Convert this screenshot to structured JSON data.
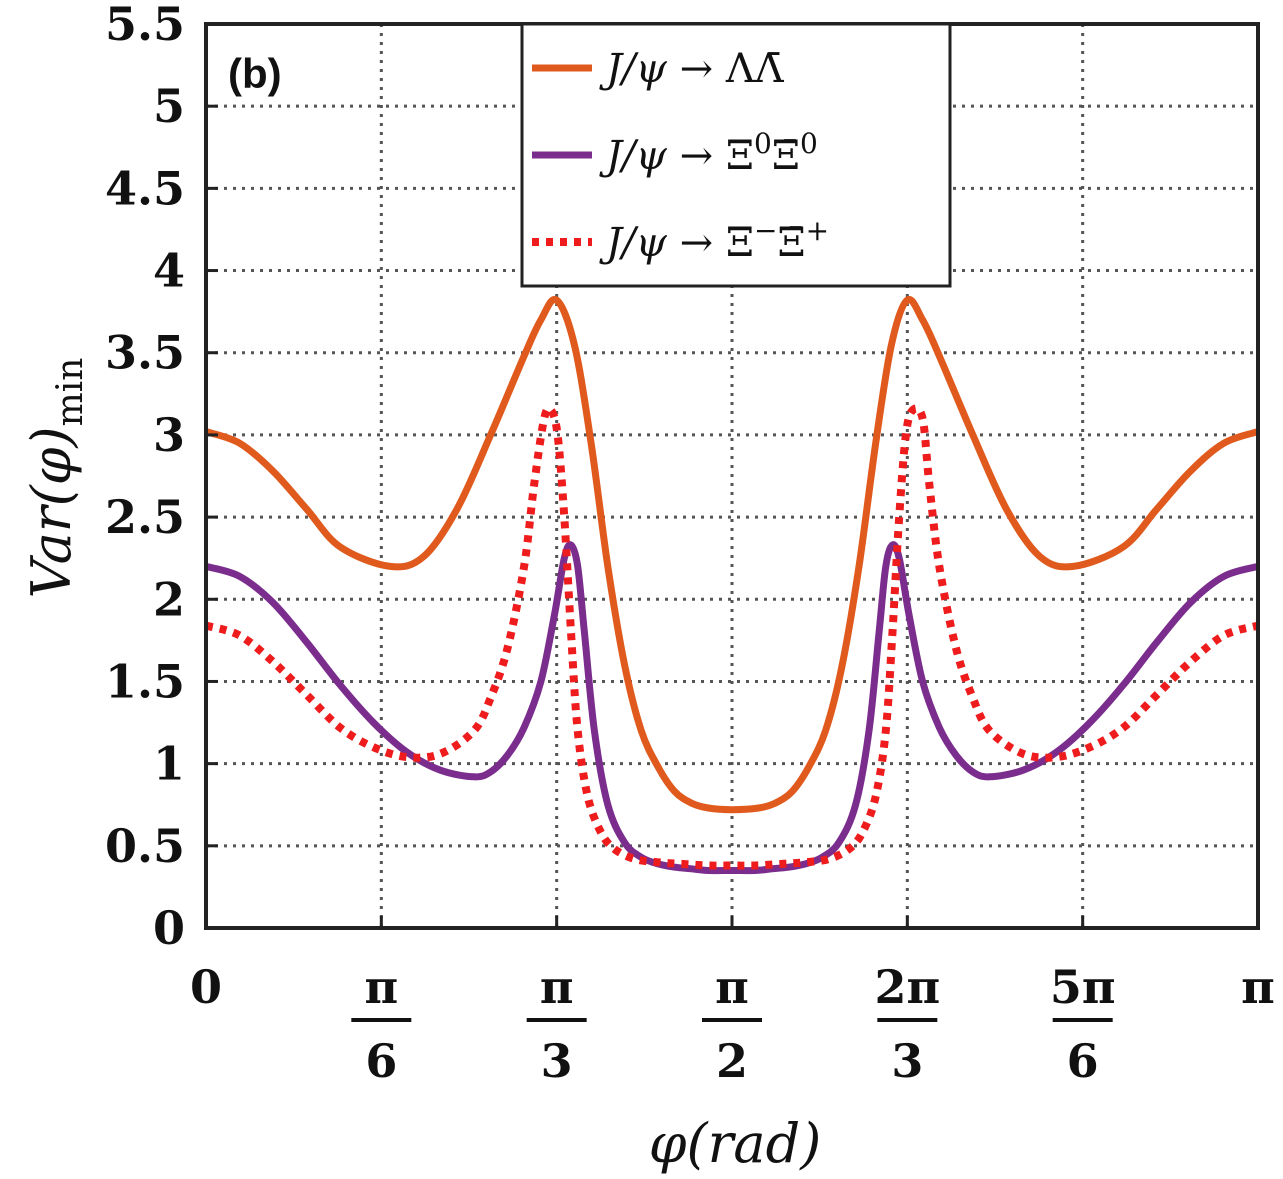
{
  "chart_data": {
    "type": "line",
    "panel_label": "(b)",
    "xlabel": "φ(rad)",
    "ylabel": "Var(φ)",
    "ylabel_sub": "min",
    "xlim": [
      0,
      3.14159265
    ],
    "ylim": [
      0,
      5.5
    ],
    "grid": true,
    "legend_position": "top-center",
    "y_ticks": [
      {
        "value": 0,
        "label": "0"
      },
      {
        "value": 0.5,
        "label": "0.5"
      },
      {
        "value": 1,
        "label": "1"
      },
      {
        "value": 1.5,
        "label": "1.5"
      },
      {
        "value": 2,
        "label": "2"
      },
      {
        "value": 2.5,
        "label": "2.5"
      },
      {
        "value": 3,
        "label": "3"
      },
      {
        "value": 3.5,
        "label": "3.5"
      },
      {
        "value": 4,
        "label": "4"
      },
      {
        "value": 4.5,
        "label": "4.5"
      },
      {
        "value": 5,
        "label": "5"
      },
      {
        "value": 5.5,
        "label": "5.5"
      }
    ],
    "x_ticks": [
      {
        "value": 0,
        "num": "0",
        "den": ""
      },
      {
        "value": 0.5235988,
        "num": "π",
        "den": "6"
      },
      {
        "value": 1.0471976,
        "num": "π",
        "den": "3"
      },
      {
        "value": 1.5707963,
        "num": "π",
        "den": "2"
      },
      {
        "value": 2.0943951,
        "num": "2π",
        "den": "3"
      },
      {
        "value": 2.6179939,
        "num": "5π",
        "den": "6"
      },
      {
        "value": 3.1415927,
        "num": "π",
        "den": ""
      }
    ],
    "series": [
      {
        "name": "J/ψ → ΛΛ̄",
        "legend_prefix": "J/ψ → ",
        "legend_body": "ΛΛ̄",
        "legend_sup1": "",
        "legend_body2": "",
        "legend_sup2": "",
        "color": "#e05a1e",
        "style": "solid",
        "x": [
          0,
          0.1,
          0.2,
          0.3,
          0.4,
          0.55,
          0.65,
          0.75,
          0.85,
          0.95,
          1.0,
          1.047,
          1.1,
          1.15,
          1.2,
          1.25,
          1.3,
          1.35,
          1.4,
          1.45,
          1.5,
          1.5708,
          1.65,
          1.7,
          1.75,
          1.8,
          1.85,
          1.9,
          1.95,
          2.0,
          2.047,
          2.094,
          2.14,
          2.19,
          2.29,
          2.39,
          2.49,
          2.59,
          2.74,
          2.84,
          2.94,
          3.04,
          3.1416
        ],
        "y": [
          3.02,
          2.95,
          2.78,
          2.55,
          2.32,
          2.2,
          2.26,
          2.55,
          3.0,
          3.48,
          3.7,
          3.82,
          3.55,
          2.95,
          2.2,
          1.6,
          1.2,
          0.98,
          0.83,
          0.76,
          0.73,
          0.72,
          0.73,
          0.76,
          0.83,
          0.98,
          1.2,
          1.6,
          2.2,
          2.95,
          3.55,
          3.82,
          3.7,
          3.48,
          3.0,
          2.55,
          2.26,
          2.2,
          2.32,
          2.55,
          2.78,
          2.95,
          3.02
        ]
      },
      {
        "name": "J/ψ → Ξ⁰Ξ̄⁰",
        "legend_prefix": "J/ψ → ",
        "legend_body": "Ξ",
        "legend_sup1": "0",
        "legend_body2": "Ξ̄",
        "legend_sup2": "0",
        "color": "#7b2d8e",
        "style": "solid",
        "x": [
          0,
          0.1,
          0.2,
          0.3,
          0.4,
          0.5,
          0.6,
          0.7,
          0.8,
          0.85,
          0.9,
          0.95,
          1.0,
          1.04,
          1.07,
          1.09,
          1.11,
          1.13,
          1.16,
          1.2,
          1.25,
          1.3,
          1.35,
          1.4,
          1.45,
          1.5,
          1.5708,
          1.64,
          1.69,
          1.74,
          1.79,
          1.84,
          1.89,
          1.94,
          1.98,
          2.01,
          2.03,
          2.05,
          2.07,
          2.1,
          2.14,
          2.19,
          2.24,
          2.29,
          2.34,
          2.44,
          2.54,
          2.64,
          2.74,
          2.84,
          2.94,
          3.04,
          3.1416
        ],
        "y": [
          2.2,
          2.14,
          1.98,
          1.74,
          1.48,
          1.25,
          1.07,
          0.96,
          0.92,
          0.95,
          1.05,
          1.22,
          1.5,
          1.9,
          2.25,
          2.33,
          2.2,
          1.8,
          1.2,
          0.75,
          0.52,
          0.43,
          0.39,
          0.37,
          0.36,
          0.35,
          0.35,
          0.35,
          0.36,
          0.37,
          0.39,
          0.43,
          0.52,
          0.75,
          1.2,
          1.8,
          2.2,
          2.33,
          2.25,
          1.9,
          1.5,
          1.22,
          1.05,
          0.95,
          0.92,
          0.96,
          1.07,
          1.25,
          1.48,
          1.74,
          1.98,
          2.14,
          2.2
        ]
      },
      {
        "name": "J/ψ → Ξ⁻Ξ̄⁺",
        "legend_prefix": "J/ψ → ",
        "legend_body": "Ξ",
        "legend_sup1": "−",
        "legend_body2": "Ξ̄",
        "legend_sup2": "+",
        "color": "#ee1c1c",
        "style": "dotted",
        "x": [
          0,
          0.1,
          0.2,
          0.3,
          0.4,
          0.5,
          0.6,
          0.7,
          0.8,
          0.85,
          0.9,
          0.95,
          0.98,
          1.01,
          1.03,
          1.05,
          1.07,
          1.09,
          1.11,
          1.14,
          1.18,
          1.22,
          1.28,
          1.35,
          1.42,
          1.5,
          1.5708,
          1.64,
          1.72,
          1.79,
          1.86,
          1.92,
          1.96,
          2.0,
          2.03,
          2.05,
          2.07,
          2.09,
          2.11,
          2.14,
          2.16,
          2.19,
          2.24,
          2.29,
          2.34,
          2.44,
          2.54,
          2.64,
          2.74,
          2.84,
          2.94,
          3.04,
          3.1416
        ],
        "y": [
          1.84,
          1.78,
          1.62,
          1.42,
          1.22,
          1.1,
          1.04,
          1.06,
          1.2,
          1.4,
          1.7,
          2.2,
          2.7,
          3.1,
          3.15,
          3.0,
          2.5,
          1.8,
          1.2,
          0.8,
          0.58,
          0.48,
          0.42,
          0.4,
          0.39,
          0.38,
          0.38,
          0.38,
          0.39,
          0.4,
          0.42,
          0.48,
          0.58,
          0.8,
          1.2,
          1.8,
          2.5,
          3.0,
          3.15,
          3.1,
          2.7,
          2.2,
          1.7,
          1.4,
          1.2,
          1.06,
          1.04,
          1.1,
          1.22,
          1.42,
          1.62,
          1.78,
          1.84
        ]
      }
    ]
  }
}
